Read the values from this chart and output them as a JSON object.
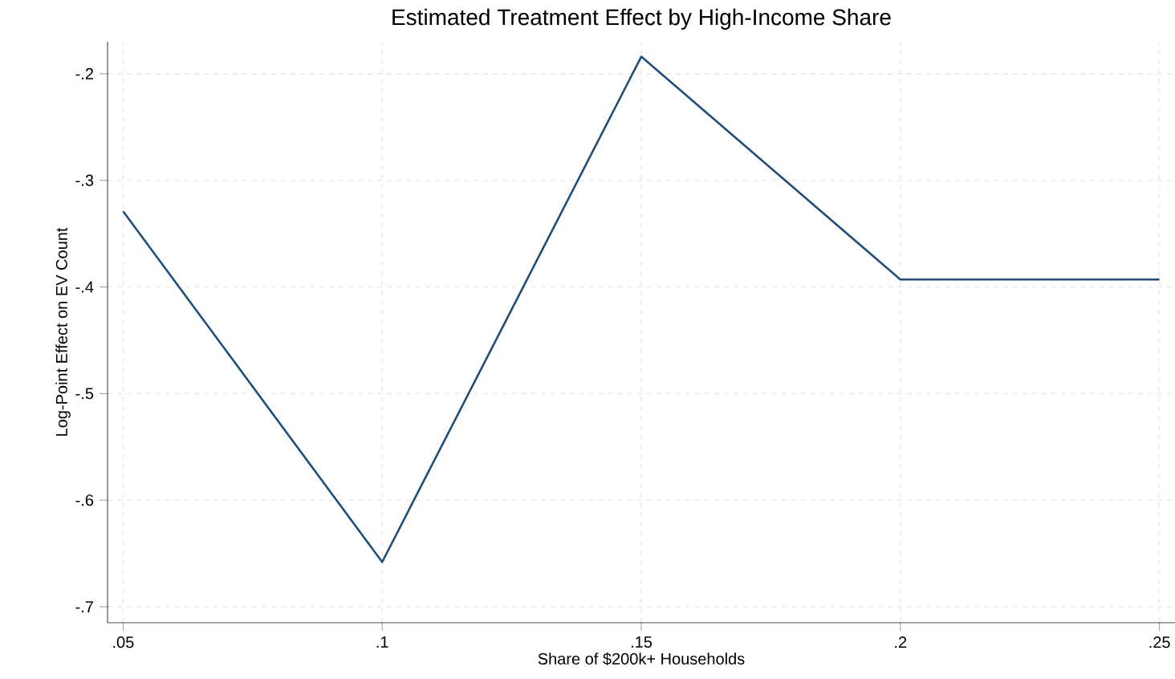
{
  "chart_data": {
    "type": "line",
    "title": "Estimated Treatment Effect by High-Income Share",
    "xlabel": "Share of $200k+ Households",
    "ylabel": "Log-Point Effect on EV Count",
    "x": [
      0.05,
      0.1,
      0.15,
      0.2,
      0.25
    ],
    "series": [
      {
        "color": "#1f4e79",
        "values": [
          -0.329,
          -0.658,
          -0.184,
          -0.393,
          -0.393
        ]
      }
    ],
    "xlim": [
      0.047,
      0.253
    ],
    "ylim": [
      -0.715,
      -0.17
    ],
    "xticks": [
      {
        "value": 0.05,
        "label": ".05"
      },
      {
        "value": 0.1,
        "label": ".1"
      },
      {
        "value": 0.15,
        "label": ".15"
      },
      {
        "value": 0.2,
        "label": ".2"
      },
      {
        "value": 0.25,
        "label": ".25"
      }
    ],
    "yticks": [
      {
        "value": -0.7,
        "label": "-.7"
      },
      {
        "value": -0.6,
        "label": "-.6"
      },
      {
        "value": -0.5,
        "label": "-.5"
      },
      {
        "value": -0.4,
        "label": "-.4"
      },
      {
        "value": -0.3,
        "label": "-.3"
      },
      {
        "value": -0.2,
        "label": "-.2"
      }
    ],
    "grid": true,
    "marker": "none",
    "line_style": "solid"
  }
}
